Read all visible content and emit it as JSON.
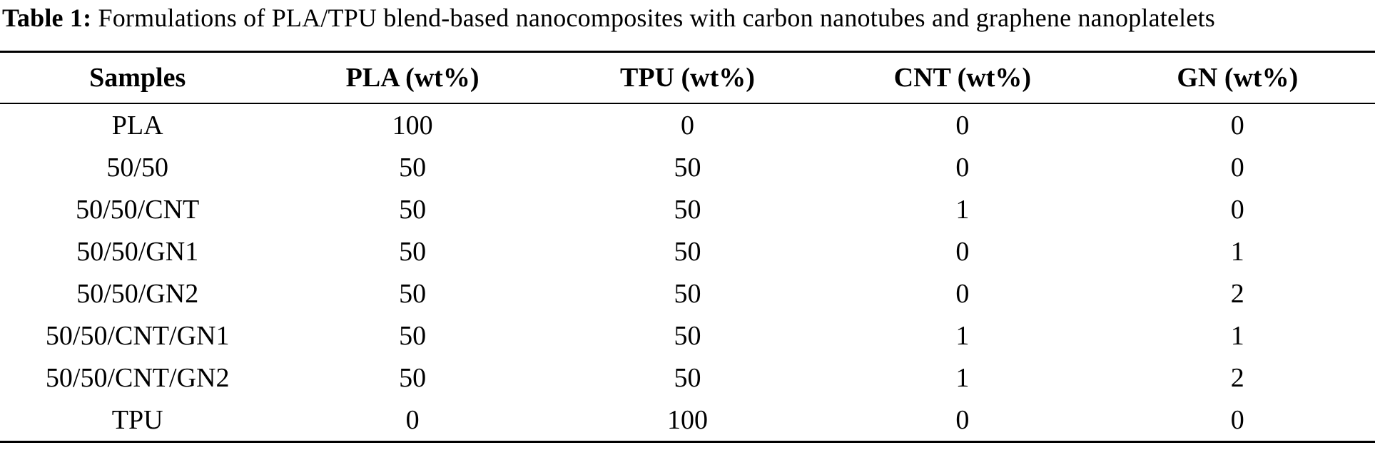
{
  "caption": {
    "label": "Table 1:",
    "text": "Formulations of PLA/TPU blend-based nanocomposites with carbon nanotubes and graphene nanoplatelets"
  },
  "chart_data": {
    "type": "table",
    "title": "Table 1: Formulations of PLA/TPU blend-based nanocomposites with carbon nanotubes and graphene nanoplatelets",
    "columns": [
      "Samples",
      "PLA (wt%)",
      "TPU (wt%)",
      "CNT (wt%)",
      "GN (wt%)"
    ],
    "rows": [
      [
        "PLA",
        "100",
        "0",
        "0",
        "0"
      ],
      [
        "50/50",
        "50",
        "50",
        "0",
        "0"
      ],
      [
        "50/50/CNT",
        "50",
        "50",
        "1",
        "0"
      ],
      [
        "50/50/GN1",
        "50",
        "50",
        "0",
        "1"
      ],
      [
        "50/50/GN2",
        "50",
        "50",
        "0",
        "2"
      ],
      [
        "50/50/CNT/GN1",
        "50",
        "50",
        "1",
        "1"
      ],
      [
        "50/50/CNT/GN2",
        "50",
        "50",
        "1",
        "2"
      ],
      [
        "TPU",
        "0",
        "100",
        "0",
        "0"
      ]
    ]
  },
  "colors": {
    "text": "#000000",
    "background": "#ffffff",
    "rule": "#000000"
  }
}
